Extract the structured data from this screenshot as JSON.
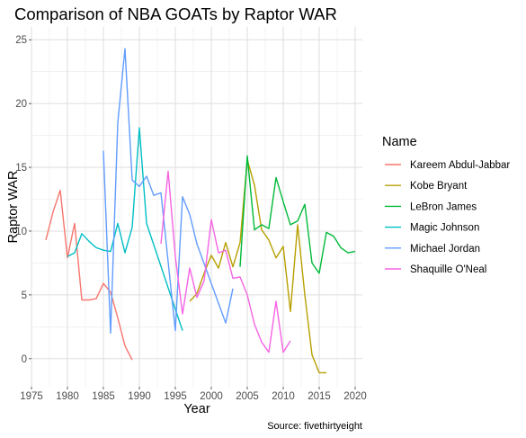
{
  "chart_data": {
    "type": "line",
    "title": "Comparison of NBA GOATs by Raptor WAR",
    "xlabel": "Year",
    "ylabel": "Raptor WAR",
    "caption": "Source: fivethirtyeight",
    "legend_title": "Name",
    "legend_position": "right",
    "grid": true,
    "xlim": [
      1975,
      2021
    ],
    "ylim": [
      -2.2,
      26
    ],
    "x_ticks": [
      1975,
      1980,
      1985,
      1990,
      1995,
      2000,
      2005,
      2010,
      2015,
      2020
    ],
    "y_ticks": [
      0,
      5,
      10,
      15,
      20,
      25
    ],
    "series": [
      {
        "name": "Kareem Abdul-Jabbar",
        "color": "#F8766D",
        "x": [
          1977,
          1978,
          1979,
          1980,
          1981,
          1982,
          1983,
          1984,
          1985,
          1986,
          1987,
          1988,
          1989
        ],
        "y": [
          9.3,
          11.5,
          13.2,
          7.9,
          10.6,
          4.6,
          4.6,
          4.7,
          5.9,
          5.2,
          3.2,
          1.0,
          -0.1
        ]
      },
      {
        "name": "Kobe Bryant",
        "color": "#B79F00",
        "x": [
          1997,
          1998,
          1999,
          2000,
          2001,
          2002,
          2003,
          2004,
          2005,
          2006,
          2007,
          2008,
          2009,
          2010,
          2011,
          2012,
          2013,
          2014,
          2015,
          2016
        ],
        "y": [
          4.5,
          5.1,
          6.7,
          8.1,
          7.1,
          9.1,
          7.2,
          9.1,
          15.6,
          13.6,
          10.1,
          9.3,
          7.9,
          8.8,
          3.7,
          10.5,
          5.0,
          0.3,
          -1.1,
          -1.1
        ]
      },
      {
        "name": "LeBron James",
        "color": "#00BA38",
        "x": [
          2004,
          2005,
          2006,
          2007,
          2008,
          2009,
          2010,
          2011,
          2012,
          2013,
          2014,
          2015,
          2016,
          2017,
          2018,
          2019,
          2020
        ],
        "y": [
          7.2,
          15.9,
          10.1,
          10.5,
          10.2,
          14.2,
          12.3,
          10.5,
          10.8,
          12.1,
          7.5,
          6.7,
          9.9,
          9.6,
          8.7,
          8.3,
          8.4
        ]
      },
      {
        "name": "Magic Johnson",
        "color": "#00BFC4",
        "x": [
          1980,
          1981,
          1982,
          1983,
          1984,
          1985,
          1986,
          1987,
          1988,
          1989,
          1990,
          1991,
          1996
        ],
        "y": [
          8.0,
          8.3,
          9.8,
          9.2,
          8.7,
          8.5,
          8.4,
          10.6,
          8.3,
          10.3,
          18.1,
          10.6,
          2.2
        ]
      },
      {
        "name": "Michael Jordan",
        "color": "#619CFF",
        "x": [
          1985,
          1986,
          1987,
          1988,
          1989,
          1990,
          1991,
          1992,
          1993,
          1995,
          1996,
          1997,
          1998,
          2002,
          2003
        ],
        "y": [
          16.3,
          2.0,
          18.5,
          24.3,
          14.0,
          13.5,
          14.3,
          12.8,
          13.0,
          2.2,
          12.7,
          11.3,
          9.0,
          2.8,
          5.5
        ]
      },
      {
        "name": "Shaquille O'Neal",
        "color": "#F564E3",
        "x": [
          1993,
          1994,
          1995,
          1996,
          1997,
          1998,
          1999,
          2000,
          2001,
          2002,
          2003,
          2004,
          2005,
          2006,
          2007,
          2008,
          2009,
          2010,
          2011
        ],
        "y": [
          9.0,
          14.7,
          8.0,
          3.5,
          7.1,
          4.8,
          6.1,
          10.9,
          8.3,
          8.5,
          6.3,
          6.4,
          5.0,
          2.7,
          1.3,
          0.5,
          4.5,
          0.5,
          1.4
        ]
      }
    ]
  }
}
